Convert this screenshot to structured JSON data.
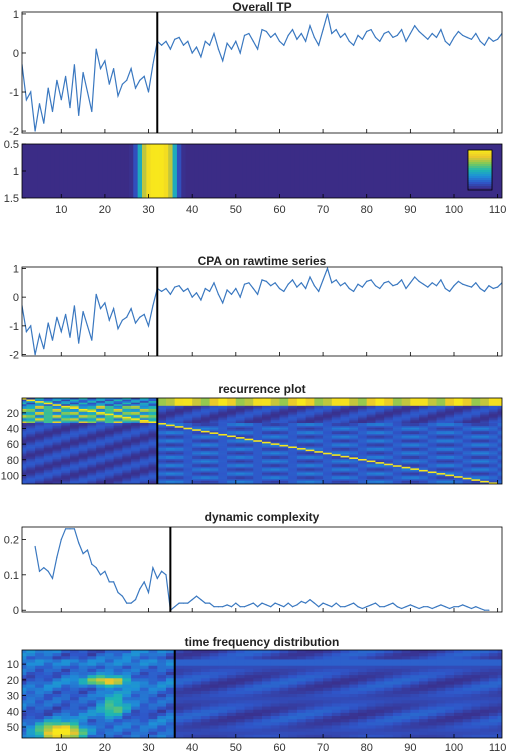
{
  "figure_background": "#ffffff",
  "line_color": "#3a78c0",
  "marker_color": "#000000",
  "colormap": [
    "#3b2c86",
    "#2f56c9",
    "#1e8fd8",
    "#1fb8b0",
    "#7cc95a",
    "#e8c52e",
    "#f8e71c"
  ],
  "x_ticks": [
    "10",
    "20",
    "30",
    "40",
    "50",
    "60",
    "70",
    "80",
    "90",
    "100",
    "110"
  ],
  "chart_data": [
    {
      "type": "line",
      "title": "Overall TP",
      "xlim": [
        1,
        111
      ],
      "ylim": [
        -2.05,
        1.05
      ],
      "y_ticks": [
        "1",
        "0",
        "-1",
        "-2"
      ],
      "y_tick_values": [
        1,
        0,
        -1,
        -2
      ],
      "change_point": 32,
      "x": [
        1,
        2,
        3,
        4,
        5,
        6,
        7,
        8,
        9,
        10,
        11,
        12,
        13,
        14,
        15,
        16,
        17,
        18,
        19,
        20,
        21,
        22,
        23,
        24,
        25,
        26,
        27,
        28,
        29,
        30,
        31,
        32,
        33,
        34,
        35,
        36,
        37,
        38,
        39,
        40,
        41,
        42,
        43,
        44,
        45,
        46,
        47,
        48,
        49,
        50,
        51,
        52,
        53,
        54,
        55,
        56,
        57,
        58,
        59,
        60,
        61,
        62,
        63,
        64,
        65,
        66,
        67,
        68,
        69,
        70,
        71,
        72,
        73,
        74,
        75,
        76,
        77,
        78,
        79,
        80,
        81,
        82,
        83,
        84,
        85,
        86,
        87,
        88,
        89,
        90,
        91,
        92,
        93,
        94,
        95,
        96,
        97,
        98,
        99,
        100,
        101,
        102,
        103,
        104,
        105,
        106,
        107,
        108,
        109,
        110,
        111
      ],
      "values": [
        -0.3,
        -1.2,
        -1.0,
        -2.0,
        -1.3,
        -1.8,
        -0.9,
        -1.5,
        -0.7,
        -1.2,
        -0.6,
        -1.4,
        -0.3,
        -1.6,
        -0.5,
        -1.0,
        -1.5,
        0.1,
        -0.4,
        -0.2,
        -0.8,
        -0.4,
        -1.1,
        -0.8,
        -0.7,
        -0.4,
        -0.9,
        -0.7,
        -0.6,
        -1.0,
        -0.3,
        0.3,
        0.2,
        0.3,
        0.1,
        0.35,
        0.4,
        0.2,
        0.3,
        0.0,
        0.15,
        -0.1,
        0.3,
        0.2,
        0.5,
        0.1,
        -0.2,
        0.25,
        0.1,
        0.3,
        0.0,
        0.45,
        0.5,
        0.3,
        0.1,
        0.6,
        0.55,
        0.4,
        0.5,
        0.3,
        0.2,
        0.45,
        0.6,
        0.35,
        0.5,
        0.3,
        0.7,
        0.4,
        0.2,
        0.6,
        1.0,
        0.5,
        0.6,
        0.4,
        0.5,
        0.3,
        0.2,
        0.45,
        0.35,
        0.55,
        0.6,
        0.4,
        0.3,
        0.5,
        0.55,
        0.4,
        0.45,
        0.6,
        0.3,
        0.5,
        0.7,
        0.55,
        0.45,
        0.35,
        0.5,
        0.4,
        0.6,
        0.3,
        0.2,
        0.4,
        0.55,
        0.45,
        0.4,
        0.35,
        0.5,
        0.3,
        0.2,
        0.4,
        0.3,
        0.35,
        0.5
      ]
    },
    {
      "type": "heatmap",
      "title": "",
      "xlim": [
        1,
        111
      ],
      "y_ticks": [
        "0.5",
        "1",
        "1.5"
      ],
      "colorbar": true,
      "peak_x": 32,
      "peak_width": 9
    },
    {
      "type": "line",
      "title": "CPA on rawtime series",
      "xlim": [
        1,
        111
      ],
      "ylim": [
        -2.05,
        1.05
      ],
      "y_ticks": [
        "1",
        "0",
        "-1",
        "-2"
      ],
      "y_tick_values": [
        1,
        0,
        -1,
        -2
      ],
      "change_point": 32,
      "x": [
        1,
        2,
        3,
        4,
        5,
        6,
        7,
        8,
        9,
        10,
        11,
        12,
        13,
        14,
        15,
        16,
        17,
        18,
        19,
        20,
        21,
        22,
        23,
        24,
        25,
        26,
        27,
        28,
        29,
        30,
        31,
        32,
        33,
        34,
        35,
        36,
        37,
        38,
        39,
        40,
        41,
        42,
        43,
        44,
        45,
        46,
        47,
        48,
        49,
        50,
        51,
        52,
        53,
        54,
        55,
        56,
        57,
        58,
        59,
        60,
        61,
        62,
        63,
        64,
        65,
        66,
        67,
        68,
        69,
        70,
        71,
        72,
        73,
        74,
        75,
        76,
        77,
        78,
        79,
        80,
        81,
        82,
        83,
        84,
        85,
        86,
        87,
        88,
        89,
        90,
        91,
        92,
        93,
        94,
        95,
        96,
        97,
        98,
        99,
        100,
        101,
        102,
        103,
        104,
        105,
        106,
        107,
        108,
        109,
        110,
        111
      ],
      "values": [
        -0.3,
        -1.2,
        -1.0,
        -2.0,
        -1.3,
        -1.8,
        -0.9,
        -1.5,
        -0.7,
        -1.2,
        -0.6,
        -1.4,
        -0.3,
        -1.6,
        -0.5,
        -1.0,
        -1.5,
        0.1,
        -0.4,
        -0.2,
        -0.8,
        -0.4,
        -1.1,
        -0.8,
        -0.7,
        -0.4,
        -0.9,
        -0.7,
        -0.6,
        -1.0,
        -0.3,
        0.3,
        0.2,
        0.3,
        0.1,
        0.35,
        0.4,
        0.2,
        0.3,
        0.0,
        0.15,
        -0.1,
        0.3,
        0.2,
        0.5,
        0.1,
        -0.2,
        0.25,
        0.1,
        0.3,
        0.0,
        0.45,
        0.5,
        0.3,
        0.1,
        0.6,
        0.55,
        0.4,
        0.5,
        0.3,
        0.2,
        0.45,
        0.6,
        0.35,
        0.5,
        0.3,
        0.7,
        0.4,
        0.2,
        0.6,
        1.0,
        0.5,
        0.6,
        0.4,
        0.5,
        0.3,
        0.2,
        0.45,
        0.35,
        0.55,
        0.6,
        0.4,
        0.3,
        0.5,
        0.55,
        0.4,
        0.45,
        0.6,
        0.3,
        0.5,
        0.7,
        0.55,
        0.45,
        0.35,
        0.5,
        0.4,
        0.6,
        0.3,
        0.2,
        0.4,
        0.55,
        0.45,
        0.4,
        0.35,
        0.5,
        0.3,
        0.2,
        0.4,
        0.3,
        0.35,
        0.5
      ]
    },
    {
      "type": "heatmap",
      "title": "recurrence plot",
      "xlim": [
        1,
        111
      ],
      "y_ticks": [
        "20",
        "40",
        "60",
        "80",
        "100"
      ],
      "y_tick_values": [
        20,
        40,
        60,
        80,
        100
      ],
      "ylim": [
        1,
        111
      ],
      "change_point": 32
    },
    {
      "type": "line",
      "title": "dynamic complexity",
      "xlim": [
        1,
        111
      ],
      "ylim": [
        -0.005,
        0.235
      ],
      "y_ticks": [
        "0.2",
        "0.1",
        "0"
      ],
      "y_tick_values": [
        0.2,
        0.1,
        0
      ],
      "change_point": 35,
      "x": [
        4,
        5,
        6,
        7,
        8,
        9,
        10,
        11,
        12,
        13,
        14,
        15,
        16,
        17,
        18,
        19,
        20,
        21,
        22,
        23,
        24,
        25,
        26,
        27,
        28,
        29,
        30,
        31,
        32,
        33,
        34,
        35,
        36,
        37,
        38,
        39,
        40,
        41,
        42,
        43,
        44,
        45,
        46,
        47,
        48,
        49,
        50,
        51,
        52,
        53,
        54,
        55,
        56,
        57,
        58,
        59,
        60,
        61,
        62,
        63,
        64,
        65,
        66,
        67,
        68,
        69,
        70,
        71,
        72,
        73,
        74,
        75,
        76,
        77,
        78,
        79,
        80,
        81,
        82,
        83,
        84,
        85,
        86,
        87,
        88,
        89,
        90,
        91,
        92,
        93,
        94,
        95,
        96,
        97,
        98,
        99,
        100,
        101,
        102,
        103,
        104,
        105,
        106,
        107,
        108
      ],
      "values": [
        0.18,
        0.11,
        0.12,
        0.11,
        0.09,
        0.15,
        0.2,
        0.23,
        0.23,
        0.23,
        0.19,
        0.16,
        0.17,
        0.13,
        0.12,
        0.1,
        0.11,
        0.08,
        0.08,
        0.05,
        0.04,
        0.02,
        0.02,
        0.03,
        0.06,
        0.08,
        0.05,
        0.12,
        0.09,
        0.11,
        0.1,
        0.0,
        0.01,
        0.02,
        0.02,
        0.02,
        0.03,
        0.04,
        0.03,
        0.02,
        0.02,
        0.01,
        0.01,
        0.01,
        0.015,
        0.01,
        0.02,
        0.01,
        0.01,
        0.015,
        0.02,
        0.01,
        0.02,
        0.015,
        0.01,
        0.02,
        0.015,
        0.01,
        0.02,
        0.01,
        0.015,
        0.025,
        0.02,
        0.03,
        0.02,
        0.01,
        0.02,
        0.015,
        0.01,
        0.02,
        0.01,
        0.01,
        0.015,
        0.02,
        0.01,
        0.005,
        0.01,
        0.015,
        0.02,
        0.01,
        0.01,
        0.015,
        0.02,
        0.01,
        0.005,
        0.01,
        0.015,
        0.01,
        0.005,
        0.01,
        0.01,
        0.005,
        0.01,
        0.015,
        0.01,
        0.005,
        0.01,
        0.01,
        0.015,
        0.01,
        0.005,
        0.01,
        0.005,
        0.0,
        0.0
      ]
    },
    {
      "type": "heatmap",
      "title": "time frequency distribution",
      "xlim": [
        1,
        111
      ],
      "y_ticks": [
        "10",
        "20",
        "30",
        "40",
        "50"
      ],
      "y_tick_values": [
        10,
        20,
        30,
        40,
        50
      ],
      "ylim": [
        1,
        57
      ],
      "change_point": 36
    }
  ]
}
